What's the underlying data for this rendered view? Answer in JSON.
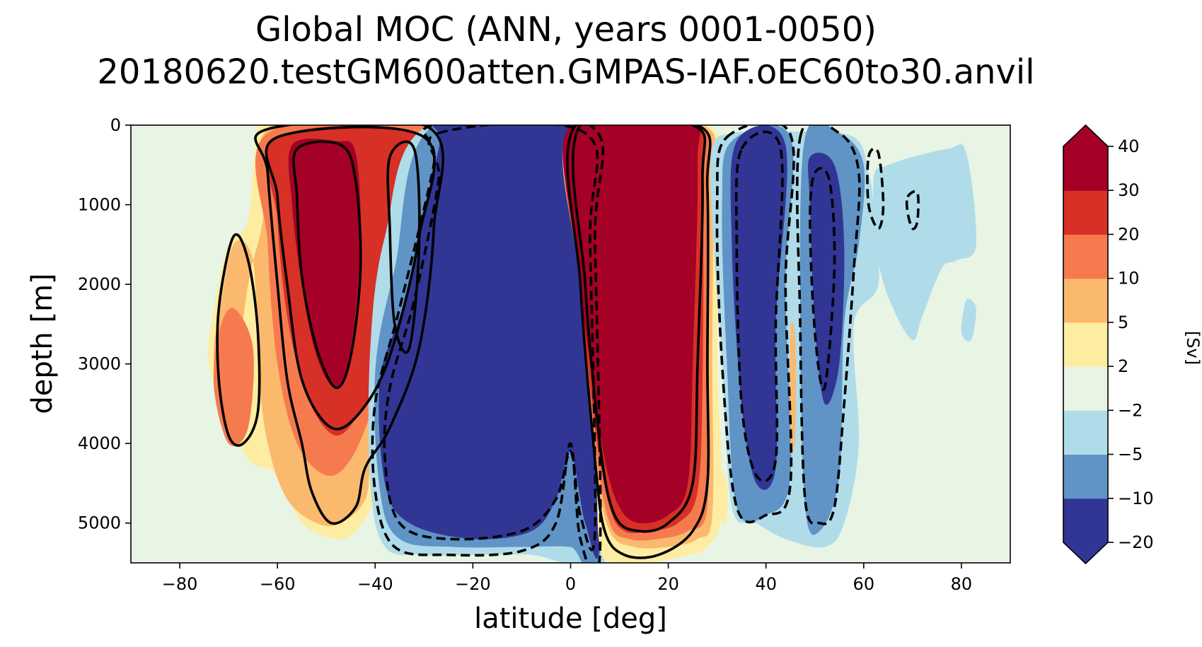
{
  "chart_data": {
    "type": "contourf",
    "title": [
      "Global MOC (ANN, years 0001-0050)",
      "20180620.testGM600atten.GMPAS-IAF.oEC60to30.anvil"
    ],
    "xlabel": "latitude [deg]",
    "ylabel": "depth [m]",
    "xlim": [
      -90,
      90
    ],
    "ylim": [
      5500,
      0
    ],
    "xticks": [
      -80,
      -60,
      -40,
      -20,
      0,
      20,
      40,
      60,
      80
    ],
    "xtick_labels": [
      "−80",
      "−60",
      "−40",
      "−20",
      "0",
      "20",
      "40",
      "60",
      "80"
    ],
    "yticks": [
      0,
      1000,
      2000,
      3000,
      4000,
      5000
    ],
    "ytick_labels": [
      "0",
      "1000",
      "2000",
      "3000",
      "4000",
      "5000"
    ],
    "colorbar": {
      "label": "[Sv]",
      "levels": [
        -20,
        -10,
        -5,
        -2,
        2,
        5,
        10,
        20,
        30,
        40
      ],
      "tick_labels": [
        "−20",
        "−10",
        "−5",
        "−2",
        "2",
        "5",
        "10",
        "20",
        "30",
        "40"
      ],
      "colors": [
        "#313695",
        "#6094c6",
        "#b0dcea",
        "#e8f4e4",
        "#fdeda2",
        "#fbb96e",
        "#f57b4e",
        "#d73027",
        "#a50026"
      ],
      "under_color": "#313695",
      "over_color": "#a50026",
      "extend": "both"
    },
    "background_color": "#e8f4e4",
    "features": [
      {
        "name": "southern-ocean-positive-cell",
        "lat_range": [
          -62,
          -28
        ],
        "depth_range": [
          0,
          5300
        ],
        "peak_sv": 40,
        "sign": "positive"
      },
      {
        "name": "antarctic-positive-lobe",
        "lat_range": [
          -73,
          -60
        ],
        "depth_range": [
          1400,
          4500
        ],
        "peak_sv": 10,
        "sign": "positive"
      },
      {
        "name": "southern-tropical-negative-cell",
        "lat_range": [
          -40,
          7
        ],
        "depth_range": [
          0,
          5500
        ],
        "peak_sv": -20,
        "sign": "negative"
      },
      {
        "name": "northern-tropical-positive-cell",
        "lat_range": [
          0,
          30
        ],
        "depth_range": [
          0,
          5500
        ],
        "peak_sv": 40,
        "sign": "positive"
      },
      {
        "name": "midlatitude-negative-cell",
        "lat_range": [
          30,
          45
        ],
        "depth_range": [
          100,
          4800
        ],
        "peak_sv": -20,
        "sign": "negative"
      },
      {
        "name": "north-negative-cell",
        "lat_range": [
          47,
          60
        ],
        "depth_range": [
          100,
          5000
        ],
        "peak_sv": -20,
        "sign": "negative"
      },
      {
        "name": "high-latitude-weak-negative",
        "lat_range": [
          60,
          82
        ],
        "depth_range": [
          200,
          2800
        ],
        "peak_sv": -5,
        "sign": "negative"
      }
    ]
  }
}
